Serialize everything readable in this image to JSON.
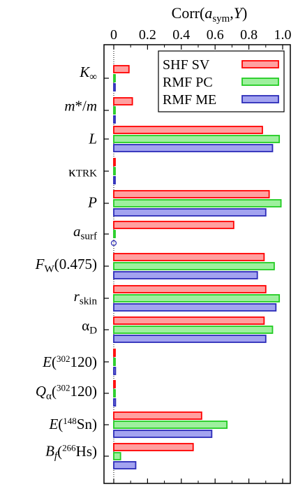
{
  "chart_data": {
    "type": "bar",
    "orientation": "horizontal",
    "title": "Corr(a_sym,Y)",
    "xlim": [
      0,
      1.0
    ],
    "x_ticks": [
      "0",
      "0.2",
      "0.4",
      "0.6",
      "0.8",
      "1.0"
    ],
    "categories": [
      "K∞",
      "m*/m",
      "L",
      "κTRK",
      "P",
      "a_surf",
      "F_W(0.475)",
      "r_skin",
      "α_D",
      "E(302 120)",
      "Q_α(302 120)",
      "E(148 Sn)",
      "B_f(266 Hs)"
    ],
    "series": [
      {
        "name": "SHF SV",
        "color": "#ff0000",
        "fill": "#ffa0a0",
        "values": [
          0.09,
          0.11,
          0.88,
          0.005,
          0.92,
          0.71,
          0.89,
          0.9,
          0.89,
          0.005,
          0.005,
          0.52,
          0.47
        ]
      },
      {
        "name": "RMF PC",
        "color": "#22cc22",
        "fill": "#9ef09e",
        "values": [
          0.005,
          0.005,
          0.98,
          0.005,
          0.99,
          0.005,
          0.95,
          0.98,
          0.94,
          0.005,
          0.005,
          0.67,
          0.04
        ]
      },
      {
        "name": "RMF ME",
        "color": "#2b2bb8",
        "fill": "#a3a3f0",
        "values": [
          0.005,
          0.005,
          0.94,
          0.005,
          0.9,
          0.0,
          0.85,
          0.96,
          0.9,
          0.01,
          0.01,
          0.58,
          0.13
        ]
      }
    ],
    "legend": {
      "position": "top-right"
    },
    "grid": false
  }
}
